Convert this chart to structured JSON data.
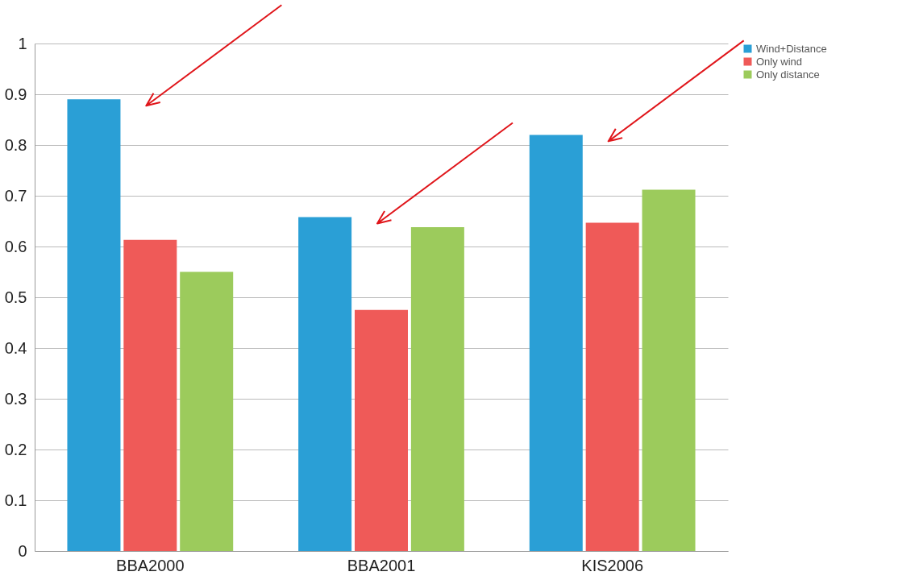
{
  "chart_data": {
    "type": "bar",
    "categories": [
      "BBA2000",
      "BBA2001",
      "KIS2006"
    ],
    "series": [
      {
        "name": "Wind+Distance",
        "color": "#2a9fd6",
        "values": [
          0.89,
          0.658,
          0.82
        ]
      },
      {
        "name": "Only wind",
        "color": "#ef5a58",
        "values": [
          0.613,
          0.475,
          0.647
        ]
      },
      {
        "name": "Only distance",
        "color": "#9ccb5c",
        "values": [
          0.55,
          0.638,
          0.712
        ]
      }
    ],
    "ylim": [
      0,
      1
    ],
    "yticks": [
      0,
      0.1,
      0.2,
      0.3,
      0.4,
      0.5,
      0.6,
      0.7,
      0.8,
      0.9,
      1
    ],
    "grid": "y",
    "legend": "right"
  }
}
